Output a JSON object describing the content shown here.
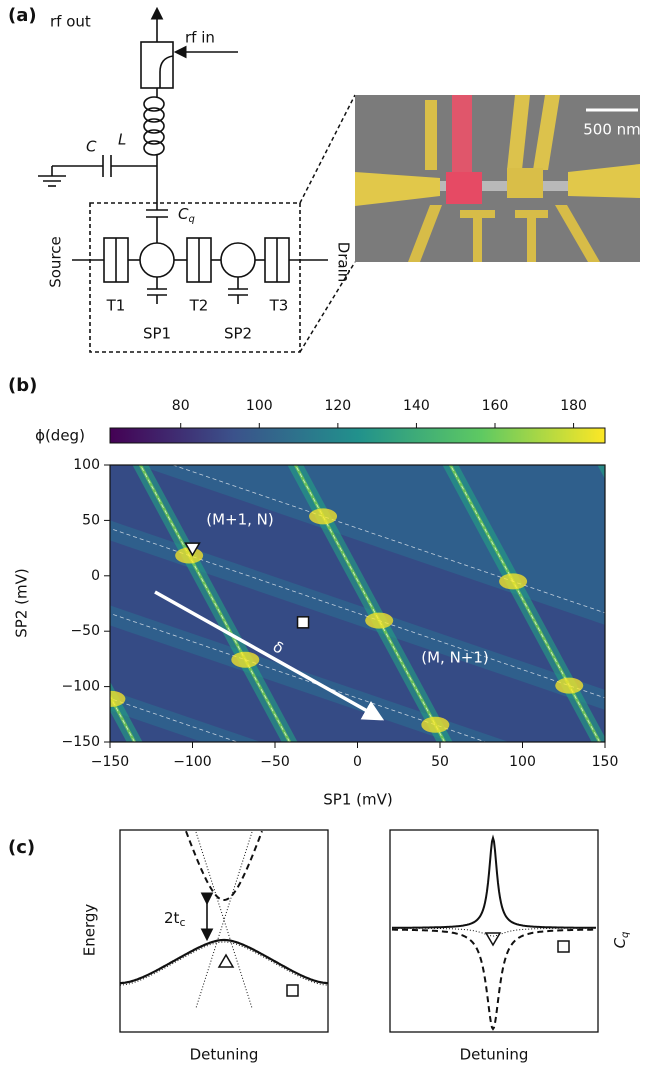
{
  "panel_a": {
    "label": "(a)",
    "rf_out": "rf out",
    "rf_in": "rf in",
    "L": "L",
    "C": "C",
    "Cq": {
      "main": "C",
      "sub": "q"
    },
    "source": "Source",
    "drain": "Drain",
    "T1": "T1",
    "T2": "T2",
    "T3": "T3",
    "SP1": "SP1",
    "SP2": "SP2",
    "scale_bar": "500 nm"
  },
  "panel_b": {
    "label": "(b)",
    "colorbar": {
      "label": "ϕ(deg)",
      "lim": [
        62,
        188
      ],
      "ticks": [
        80,
        100,
        120,
        140,
        160,
        180
      ]
    },
    "x_label": "SP1 (mV)",
    "y_label": "SP2 (mV)",
    "xlim": [
      -150,
      150
    ],
    "ylim": [
      -150,
      100
    ],
    "xticks": [
      {
        "value": -150,
        "label": "−150"
      },
      {
        "value": -100,
        "label": "−100"
      },
      {
        "value": -50,
        "label": "−50"
      },
      0,
      50,
      100,
      150
    ],
    "yticks": [
      100,
      50,
      0,
      {
        "value": -50,
        "label": "−50"
      },
      {
        "value": -100,
        "label": "−100"
      },
      {
        "value": -150,
        "label": "−150"
      }
    ],
    "annotations": [
      "(M+1, N)",
      "(M, N+1)"
    ],
    "arrow_label": "δ",
    "triangle_marker": {
      "x": -100,
      "y": 25
    },
    "square_marker": {
      "x": -33,
      "y": -42
    }
  },
  "panel_c": {
    "label": "(c)",
    "left": {
      "y_label": "Energy",
      "x_label": "Detuning",
      "gap_label": {
        "main": "2t",
        "sub": "c"
      }
    },
    "right": {
      "y_label": {
        "main": "C",
        "sub": "q"
      },
      "x_label": "Detuning"
    }
  }
}
